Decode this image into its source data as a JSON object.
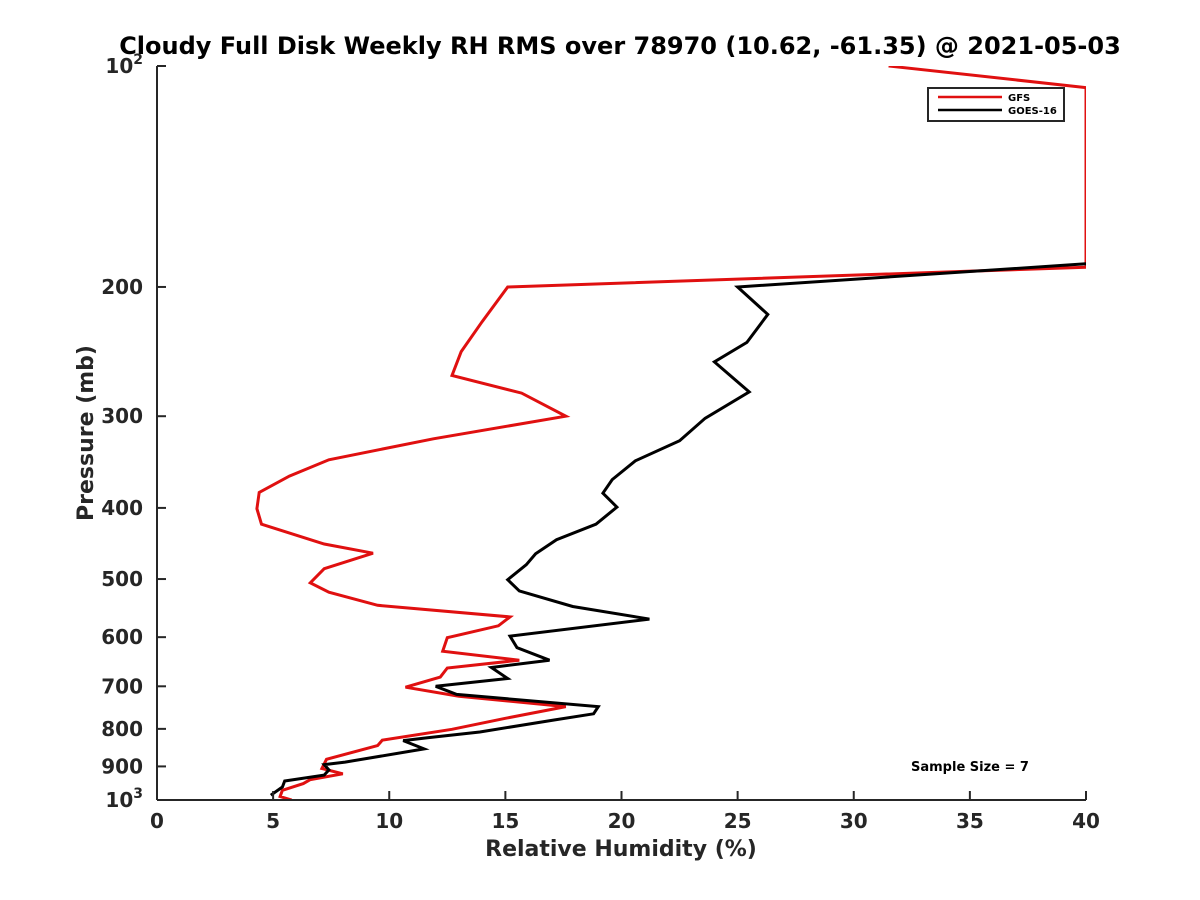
{
  "chart_data": {
    "type": "line",
    "title": "Cloudy Full Disk Weekly RH RMS over 78970 (10.62, -61.35) @ 2021-05-03",
    "xlabel": "Relative Humidity (%)",
    "ylabel": "Pressure (mb)",
    "xlim": [
      0,
      40
    ],
    "ylim": [
      100,
      1000
    ],
    "yscale": "log",
    "y_reversed": true,
    "x_ticks": [
      "0",
      "5",
      "10",
      "15",
      "20",
      "25",
      "30",
      "35",
      "40"
    ],
    "y_ticks": [
      {
        "value": 100,
        "label": "10",
        "sup": "2"
      },
      {
        "value": 200,
        "label": "200"
      },
      {
        "value": 300,
        "label": "300"
      },
      {
        "value": 400,
        "label": "400"
      },
      {
        "value": 500,
        "label": "500"
      },
      {
        "value": 600,
        "label": "600"
      },
      {
        "value": 700,
        "label": "700"
      },
      {
        "value": 800,
        "label": "800"
      },
      {
        "value": 900,
        "label": "900"
      },
      {
        "value": 1000,
        "label": "10",
        "sup": "3"
      }
    ],
    "legend_position": "top-right",
    "annotation": "Sample Size = 7",
    "grid": false,
    "series": [
      {
        "name": "GFS",
        "color": "#e01010",
        "points": [
          [
            31.5,
            100
          ],
          [
            40.0,
            107
          ],
          [
            40.0,
            188
          ],
          [
            15.1,
            200
          ],
          [
            14.0,
            223
          ],
          [
            13.1,
            245
          ],
          [
            12.7,
            264
          ],
          [
            15.7,
            279
          ],
          [
            17.6,
            300
          ],
          [
            11.9,
            322
          ],
          [
            7.4,
            344
          ],
          [
            5.7,
            362
          ],
          [
            4.4,
            381
          ],
          [
            4.3,
            401
          ],
          [
            4.5,
            421
          ],
          [
            7.2,
            448
          ],
          [
            9.3,
            461
          ],
          [
            7.2,
            484
          ],
          [
            6.6,
            506
          ],
          [
            7.4,
            521
          ],
          [
            9.5,
            543
          ],
          [
            15.2,
            563
          ],
          [
            14.7,
            579
          ],
          [
            12.5,
            601
          ],
          [
            12.3,
            627
          ],
          [
            15.6,
            645
          ],
          [
            12.5,
            661
          ],
          [
            12.2,
            680
          ],
          [
            10.7,
            702
          ],
          [
            13.0,
            722
          ],
          [
            17.6,
            746
          ],
          [
            15.0,
            774
          ],
          [
            12.7,
            801
          ],
          [
            9.7,
            829
          ],
          [
            9.5,
            843
          ],
          [
            7.3,
            880
          ],
          [
            7.1,
            906
          ],
          [
            8.0,
            921
          ],
          [
            6.6,
            938
          ],
          [
            6.3,
            950
          ],
          [
            5.4,
            970
          ],
          [
            5.3,
            989
          ],
          [
            5.8,
            1000
          ]
        ]
      },
      {
        "name": "GOES-16",
        "color": "#000000",
        "points": [
          [
            40.0,
            186
          ],
          [
            25.0,
            200
          ],
          [
            26.3,
            218
          ],
          [
            25.4,
            238
          ],
          [
            24.0,
            253
          ],
          [
            25.5,
            278
          ],
          [
            23.6,
            302
          ],
          [
            22.5,
            324
          ],
          [
            20.6,
            345
          ],
          [
            19.6,
            366
          ],
          [
            19.2,
            382
          ],
          [
            19.8,
            399
          ],
          [
            18.9,
            421
          ],
          [
            17.2,
            442
          ],
          [
            16.3,
            462
          ],
          [
            15.9,
            478
          ],
          [
            15.1,
            501
          ],
          [
            15.6,
            519
          ],
          [
            17.9,
            545
          ],
          [
            21.2,
            567
          ],
          [
            15.2,
            598
          ],
          [
            15.5,
            620
          ],
          [
            16.9,
            645
          ],
          [
            14.4,
            660
          ],
          [
            15.1,
            683
          ],
          [
            12.0,
            700
          ],
          [
            12.9,
            718
          ],
          [
            19.0,
            746
          ],
          [
            18.8,
            763
          ],
          [
            17.1,
            778
          ],
          [
            13.9,
            808
          ],
          [
            11.6,
            823
          ],
          [
            10.6,
            830
          ],
          [
            11.5,
            852
          ],
          [
            8.1,
            888
          ],
          [
            7.2,
            895
          ],
          [
            7.4,
            910
          ],
          [
            7.2,
            925
          ],
          [
            5.5,
            942
          ],
          [
            5.4,
            960
          ],
          [
            4.9,
            985
          ]
        ]
      }
    ]
  }
}
